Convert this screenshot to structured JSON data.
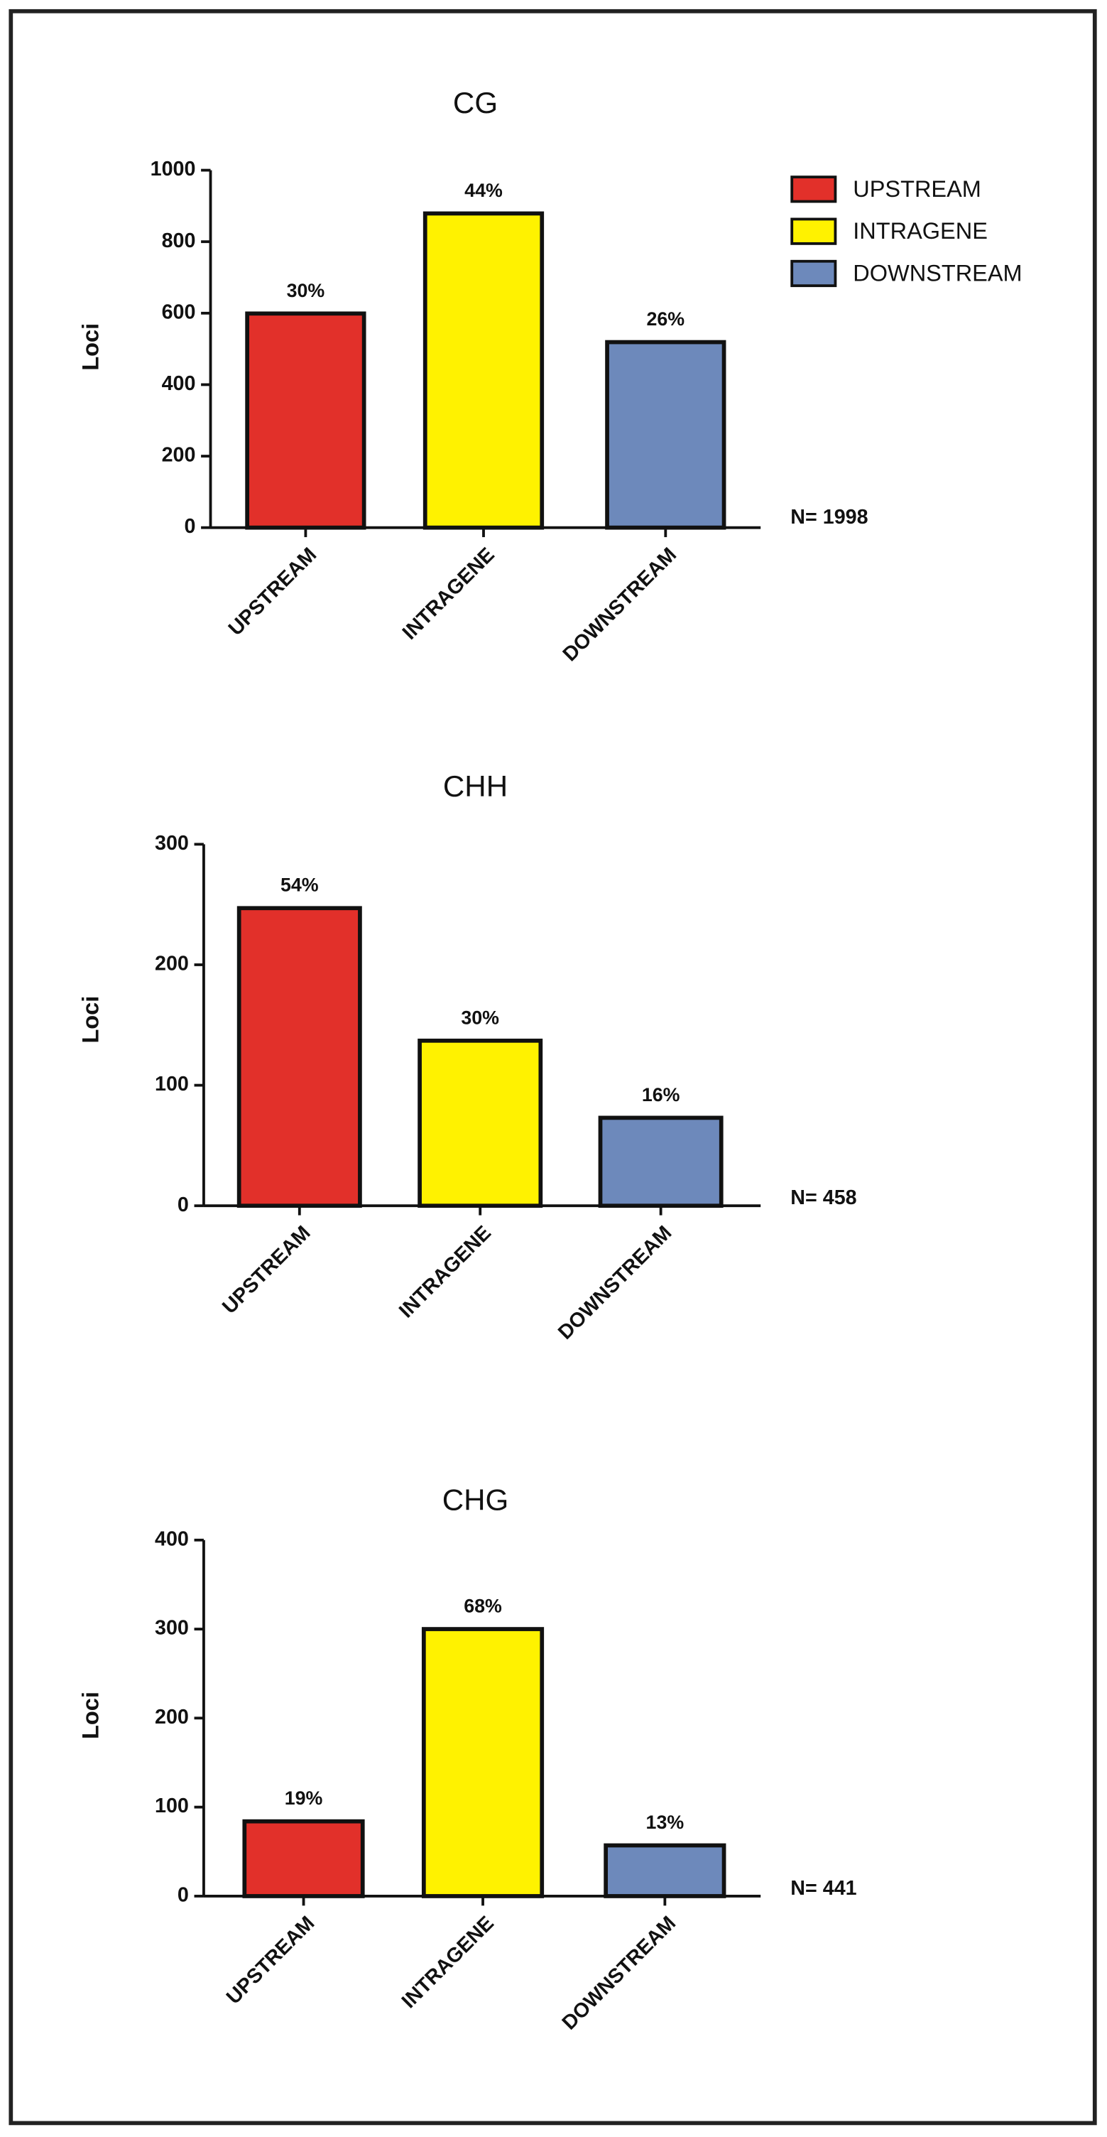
{
  "chart_data": [
    {
      "type": "bar",
      "title": "CG",
      "y_label": "Loci",
      "categories": [
        "UPSTREAM",
        "INTRAGENE",
        "DOWNSTREAM"
      ],
      "values": [
        599,
        879,
        519
      ],
      "bar_labels": [
        "30%",
        "44%",
        "26%"
      ],
      "colors": [
        "#e2302a",
        "#fff200",
        "#6d89bb"
      ],
      "ylim": [
        0,
        1000
      ],
      "yticks": [
        0,
        200,
        400,
        600,
        800,
        1000
      ],
      "note": "N= 1998",
      "legend": "upper right"
    },
    {
      "type": "bar",
      "title": "CHH",
      "y_label": "Loci",
      "categories": [
        "UPSTREAM",
        "INTRAGENE",
        "DOWNSTREAM"
      ],
      "values": [
        247,
        137,
        73
      ],
      "bar_labels": [
        "54%",
        "30%",
        "16%"
      ],
      "colors": [
        "#e2302a",
        "#fff200",
        "#6d89bb"
      ],
      "ylim": [
        0,
        300
      ],
      "yticks": [
        0,
        100,
        200,
        300
      ],
      "note": "N= 458"
    },
    {
      "type": "bar",
      "title": "CHG",
      "y_label": "Loci",
      "categories": [
        "UPSTREAM",
        "INTRAGENE",
        "DOWNSTREAM"
      ],
      "values": [
        84,
        300,
        57
      ],
      "bar_labels": [
        "19%",
        "68%",
        "13%"
      ],
      "colors": [
        "#e2302a",
        "#fff200",
        "#6d89bb"
      ],
      "ylim": [
        0,
        400
      ],
      "yticks": [
        0,
        100,
        200,
        300,
        400
      ],
      "note": "N= 441"
    }
  ]
}
